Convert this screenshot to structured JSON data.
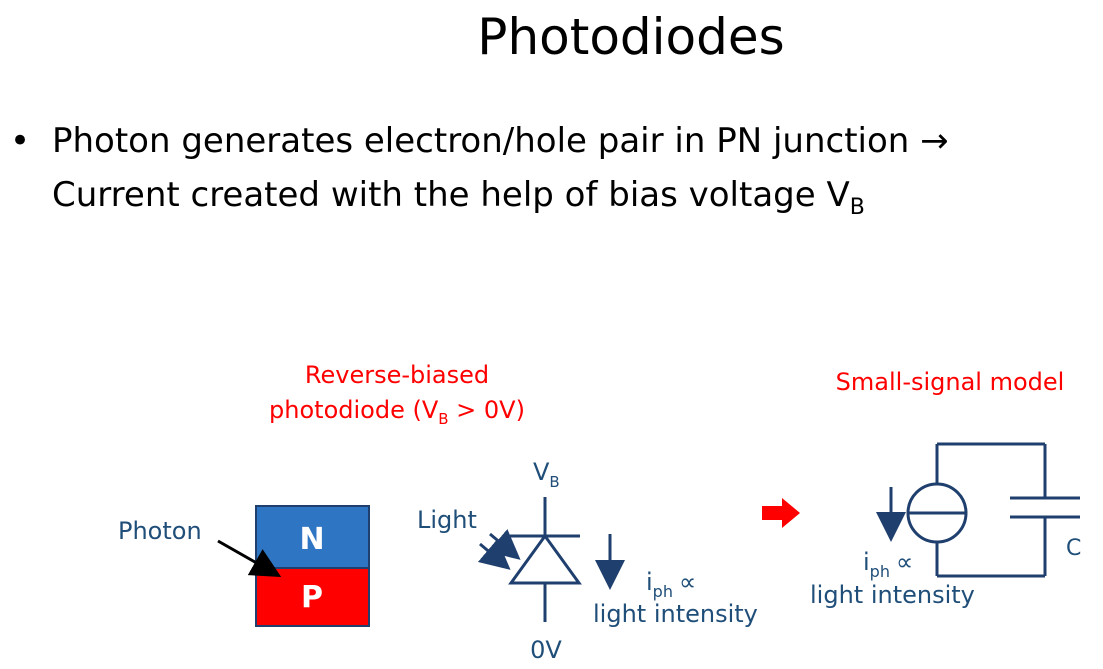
{
  "title": "Photodiodes",
  "bullet": {
    "line1": "Photon generates electron/hole pair in PN junction →",
    "line2_main": "Current created with the help of bias voltage V",
    "line2_sub": "B"
  },
  "pn_block": {
    "photon_label": "Photon",
    "n_label": "N",
    "p_label": "P",
    "n_color": "#2e75c4",
    "p_color": "#ff0000"
  },
  "diode_circuit": {
    "caption_line1": "Reverse-biased",
    "caption_line2_pre": "photodiode (V",
    "caption_line2_sub": "B",
    "caption_line2_post": " > 0V)",
    "top_label": "V",
    "top_label_sub": "B",
    "bottom_label": "0V",
    "light_label": "Light",
    "current_label": "i",
    "current_sub": "ph",
    "proportional": "∝",
    "current_desc": "light intensity"
  },
  "small_signal": {
    "caption": "Small-signal model",
    "current_label": "i",
    "current_sub": "ph",
    "proportional": "∝",
    "current_desc": "light intensity",
    "cap_label": "C"
  },
  "colors": {
    "caption_red": "#ff0000",
    "circuit_blue": "#1f3f6e",
    "label_blue": "#1f4e79",
    "arrow_red": "#ff0000"
  }
}
